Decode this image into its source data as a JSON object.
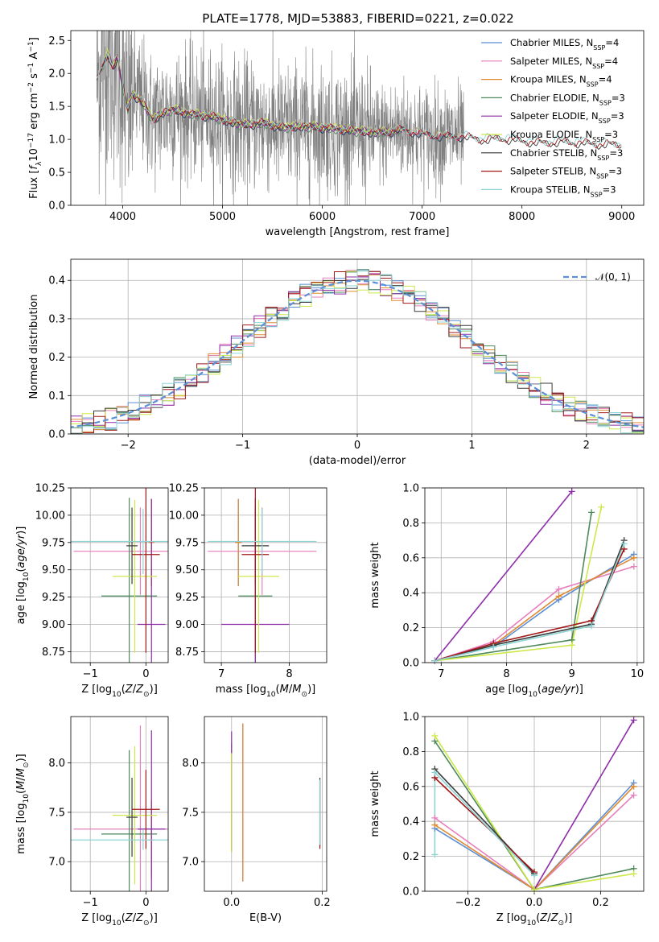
{
  "figure_title": "PLATE=1778, MJD=53883, FIBERID=0221, z=0.022",
  "colors": {
    "Chabrier MILES": "#5b8fd6",
    "Salpeter MILES": "#e77fbd",
    "Kroupa MILES": "#e08a30",
    "Chabrier ELODIE": "#4e8a5a",
    "Salpeter ELODIE": "#8e2da8",
    "Kroupa ELODIE": "#cde84a",
    "Chabrier STELIB": "#3a3a3a",
    "Salpeter STELIB": "#a01818",
    "Kroupa STELIB": "#8fd4d4",
    "data": "#808080",
    "grid": "#b0b0b0",
    "normal": "#5b8fd6"
  },
  "chart_data": [
    {
      "id": "spectrum",
      "type": "line",
      "title": "PLATE=1778, MJD=53883, FIBERID=0221, z=0.022",
      "xlabel": "wavelength [Angstrom, rest frame]",
      "ylabel": "Flux [f_λ 10^-17 erg cm^-2 s^-1 A^-1]",
      "xlim": [
        3480,
        9220
      ],
      "ylim": [
        0,
        2.65
      ],
      "xticks": [
        4000,
        5000,
        6000,
        7000,
        8000,
        9000
      ],
      "yticks": [
        0.0,
        0.5,
        1.0,
        1.5,
        2.0,
        2.5
      ],
      "grid": false,
      "legend_position": "top-right",
      "legend": [
        "Chabrier MILES, N_SSP=4",
        "Salpeter MILES, N_SSP=4",
        "Kroupa MILES, N_SSP=4",
        "Chabrier ELODIE, N_SSP=3",
        "Salpeter ELODIE, N_SSP=3",
        "Kroupa ELODIE, N_SSP=3",
        "Chabrier STELIB, N_SSP=3",
        "Salpeter STELIB, N_SSP=3",
        "Kroupa STELIB, N_SSP=3"
      ],
      "observed_x_range": [
        3740,
        7420
      ],
      "model_continuum": {
        "x": [
          3740,
          3800,
          3850,
          3900,
          3950,
          4000,
          4050,
          4100,
          4200,
          4300,
          4400,
          4500,
          4700,
          4900,
          5000,
          5200,
          5400,
          5600,
          5800,
          6000,
          6200,
          6400,
          6600,
          6800,
          7000,
          7200,
          7400,
          7600,
          7800,
          8000,
          8200,
          8400,
          8600,
          8800,
          9000
        ],
        "y": [
          1.9,
          2.1,
          2.3,
          2.1,
          2.25,
          1.8,
          1.45,
          1.7,
          1.55,
          1.3,
          1.4,
          1.45,
          1.38,
          1.35,
          1.3,
          1.22,
          1.25,
          1.18,
          1.2,
          1.18,
          1.15,
          1.12,
          1.1,
          1.15,
          1.08,
          1.05,
          1.05,
          1.0,
          1.02,
          0.98,
          0.95,
          0.97,
          0.95,
          0.93,
          0.93
        ]
      }
    },
    {
      "id": "residuals",
      "type": "histogram",
      "xlabel": "(data-model)/error",
      "ylabel": "Normed distribution",
      "xlim": [
        -2.5,
        2.5
      ],
      "ylim": [
        0,
        0.455
      ],
      "xticks": [
        -2,
        -1,
        0,
        1,
        2
      ],
      "yticks": [
        0.0,
        0.1,
        0.2,
        0.3,
        0.4
      ],
      "grid": true,
      "legend_position": "top-right",
      "legend": [
        "N(0,1)"
      ],
      "bin_width": 0.1
    },
    {
      "id": "age-vs-Z",
      "type": "errorbar",
      "xlabel": "Z [log10(Z/Z⊙)]",
      "ylabel": "age  [log10(age/yr)]",
      "xlim": [
        -1.35,
        0.4
      ],
      "ylim": [
        8.65,
        10.25
      ],
      "xticks": [
        -1,
        0
      ],
      "yticks": [
        8.75,
        9.0,
        9.25,
        9.5,
        9.75,
        10.0,
        10.25
      ],
      "grid": true,
      "points": [
        {
          "series": "Chabrier MILES",
          "x": 0.1,
          "xerr": 0.05,
          "y": 9.75,
          "yerr": 0.4
        },
        {
          "series": "Salpeter MILES",
          "x": -0.1,
          "xerr": 1.2,
          "y": 9.67,
          "yerr": 0.4
        },
        {
          "series": "Kroupa MILES",
          "x": 0.1,
          "xerr": 0.05,
          "y": 9.75,
          "yerr": 0.4
        },
        {
          "series": "Chabrier ELODIE",
          "x": -0.3,
          "xerr": 0.5,
          "y": 9.26,
          "yerr": 0.9
        },
        {
          "series": "Salpeter ELODIE",
          "x": 0.1,
          "xerr": 0.25,
          "y": 9.0,
          "yerr": 1.15
        },
        {
          "series": "Kroupa ELODIE",
          "x": -0.2,
          "xerr": 0.4,
          "y": 9.44,
          "yerr": 0.7
        },
        {
          "series": "Chabrier STELIB",
          "x": -0.25,
          "xerr": 0.1,
          "y": 9.72,
          "yerr": 0.35
        },
        {
          "series": "Salpeter STELIB",
          "x": 0.0,
          "xerr": 0.25,
          "y": 9.64,
          "yerr": 0.9
        },
        {
          "series": "Kroupa STELIB",
          "x": -0.05,
          "xerr": 1.3,
          "y": 9.76,
          "yerr": 0.3
        }
      ]
    },
    {
      "id": "age-vs-mass",
      "type": "errorbar",
      "xlabel": "mass [log10(M/M⊙)]",
      "ylabel": "",
      "xlim": [
        6.75,
        8.55
      ],
      "ylim": [
        8.65,
        10.25
      ],
      "xticks": [
        7,
        8
      ],
      "yticks": [
        8.75,
        9.0,
        9.25,
        9.5,
        9.75,
        10.0,
        10.25
      ],
      "grid": true,
      "points": [
        {
          "series": "Chabrier MILES",
          "x": 7.25,
          "xerr": 0.05,
          "y": 9.75,
          "yerr": 0.4
        },
        {
          "series": "Salpeter MILES",
          "x": 7.6,
          "xerr": 0.8,
          "y": 9.67,
          "yerr": 0.4
        },
        {
          "series": "Kroupa MILES",
          "x": 7.25,
          "xerr": 0.05,
          "y": 9.75,
          "yerr": 0.4
        },
        {
          "series": "Chabrier ELODIE",
          "x": 7.5,
          "xerr": 0.25,
          "y": 9.26,
          "yerr": 0.9
        },
        {
          "series": "Salpeter ELODIE",
          "x": 7.5,
          "xerr": 0.5,
          "y": 9.0,
          "yerr": 1.15
        },
        {
          "series": "Kroupa ELODIE",
          "x": 7.55,
          "xerr": 0.3,
          "y": 9.44,
          "yerr": 0.7
        },
        {
          "series": "Chabrier STELIB",
          "x": 7.5,
          "xerr": 0.2,
          "y": 9.72,
          "yerr": 0.35
        },
        {
          "series": "Salpeter STELIB",
          "x": 7.5,
          "xerr": 0.2,
          "y": 9.64,
          "yerr": 0.9
        },
        {
          "series": "Kroupa STELIB",
          "x": 7.6,
          "xerr": 0.8,
          "y": 9.76,
          "yerr": 0.3
        }
      ]
    },
    {
      "id": "weight-vs-age",
      "type": "line",
      "xlabel": "age  [log10(age/yr)]",
      "ylabel": "mass weight",
      "xlim": [
        6.75,
        10.1
      ],
      "ylim": [
        0,
        1.0
      ],
      "xticks": [
        7,
        8,
        9,
        10
      ],
      "yticks": [
        0.0,
        0.2,
        0.4,
        0.6,
        0.8,
        1.0
      ],
      "grid": true,
      "series": [
        {
          "name": "Chabrier MILES",
          "x": [
            6.9,
            7.8,
            8.8,
            9.95
          ],
          "y": [
            0.01,
            0.09,
            0.36,
            0.62
          ]
        },
        {
          "name": "Salpeter MILES",
          "x": [
            6.9,
            7.8,
            8.8,
            9.95
          ],
          "y": [
            0.01,
            0.12,
            0.42,
            0.55
          ]
        },
        {
          "name": "Kroupa MILES",
          "x": [
            6.9,
            7.8,
            8.8,
            9.95
          ],
          "y": [
            0.01,
            0.1,
            0.38,
            0.6
          ]
        },
        {
          "name": "Chabrier ELODIE",
          "x": [
            6.9,
            9.0,
            9.3
          ],
          "y": [
            0.01,
            0.13,
            0.86
          ]
        },
        {
          "name": "Salpeter ELODIE",
          "x": [
            6.9,
            9.0
          ],
          "y": [
            0.01,
            0.98
          ]
        },
        {
          "name": "Kroupa ELODIE",
          "x": [
            6.9,
            9.0,
            9.45
          ],
          "y": [
            0.01,
            0.1,
            0.89
          ]
        },
        {
          "name": "Chabrier STELIB",
          "x": [
            6.9,
            7.8,
            9.3,
            9.8
          ],
          "y": [
            0.01,
            0.1,
            0.22,
            0.7
          ]
        },
        {
          "name": "Salpeter STELIB",
          "x": [
            6.9,
            7.8,
            9.3,
            9.8
          ],
          "y": [
            0.01,
            0.11,
            0.24,
            0.65
          ]
        },
        {
          "name": "Kroupa STELIB",
          "x": [
            6.9,
            7.8,
            9.3,
            9.8
          ],
          "y": [
            0.01,
            0.09,
            0.21,
            0.68
          ]
        }
      ]
    },
    {
      "id": "mass-vs-Z",
      "type": "errorbar",
      "xlabel": "Z [log10(Z/Z⊙)]",
      "ylabel": "mass [log10(M/M⊙)]",
      "xlim": [
        -1.35,
        0.4
      ],
      "ylim": [
        6.7,
        8.47
      ],
      "xticks": [
        -1,
        0
      ],
      "yticks": [
        7.0,
        7.5,
        8.0
      ],
      "grid": true,
      "points": [
        {
          "series": "Chabrier MILES",
          "x": 0.1,
          "xerr": 0.05,
          "y": 7.22,
          "yerr": 0.35
        },
        {
          "series": "Salpeter MILES",
          "x": -0.1,
          "xerr": 1.2,
          "y": 7.33,
          "yerr": 1.05
        },
        {
          "series": "Kroupa MILES",
          "x": 0.1,
          "xerr": 0.05,
          "y": 7.22,
          "yerr": 0.4
        },
        {
          "series": "Chabrier ELODIE",
          "x": -0.3,
          "xerr": 0.5,
          "y": 7.28,
          "yerr": 0.85
        },
        {
          "series": "Salpeter ELODIE",
          "x": 0.1,
          "xerr": 0.25,
          "y": 7.33,
          "yerr": 1.0
        },
        {
          "series": "Kroupa ELODIE",
          "x": -0.2,
          "xerr": 0.4,
          "y": 7.47,
          "yerr": 0.7
        },
        {
          "series": "Chabrier STELIB",
          "x": -0.25,
          "xerr": 0.1,
          "y": 7.45,
          "yerr": 0.4
        },
        {
          "series": "Salpeter STELIB",
          "x": 0.0,
          "xerr": 0.25,
          "y": 7.53,
          "yerr": 0.4
        },
        {
          "series": "Kroupa STELIB",
          "x": -0.05,
          "xerr": 1.3,
          "y": 7.22,
          "yerr": 0.1
        }
      ]
    },
    {
      "id": "mass-vs-ebv",
      "type": "errorbar",
      "xlabel": "E(B-V)",
      "ylabel": "",
      "xlim": [
        -0.06,
        0.21
      ],
      "ylim": [
        6.7,
        8.47
      ],
      "xticks": [
        0.0,
        0.2
      ],
      "yticks": [
        7.0,
        7.5,
        8.0
      ],
      "grid": true,
      "points": [
        {
          "series": "Chabrier MILES",
          "x": 0.025,
          "xerr": 0,
          "y": 7.6,
          "yerr": 0.8
        },
        {
          "series": "Salpeter MILES",
          "x": 0.025,
          "xerr": 0,
          "y": 7.6,
          "yerr": 0.8
        },
        {
          "series": "Kroupa MILES",
          "x": 0.025,
          "xerr": 0,
          "y": 7.6,
          "yerr": 0.8
        },
        {
          "series": "Chabrier ELODIE",
          "x": 0.0,
          "xerr": 0,
          "y": 7.65,
          "yerr": 0.55
        },
        {
          "series": "Salpeter ELODIE",
          "x": 0.0,
          "xerr": 0,
          "y": 7.72,
          "yerr": 0.6
        },
        {
          "series": "Kroupa ELODIE",
          "x": 0.0,
          "xerr": 0,
          "y": 7.6,
          "yerr": 0.5
        },
        {
          "series": "Chabrier STELIB",
          "x": 0.195,
          "xerr": 0,
          "y": 7.5,
          "yerr": 0.35
        },
        {
          "series": "Salpeter STELIB",
          "x": 0.195,
          "xerr": 0,
          "y": 7.48,
          "yerr": 0.35
        },
        {
          "series": "Kroupa STELIB",
          "x": 0.195,
          "xerr": 0,
          "y": 7.5,
          "yerr": 0.33
        }
      ]
    },
    {
      "id": "weight-vs-Z",
      "type": "line",
      "xlabel": "Z [log10(Z/Z⊙)]",
      "ylabel": "mass weight",
      "xlim": [
        -0.33,
        0.33
      ],
      "ylim": [
        0,
        1.0
      ],
      "xticks": [
        -0.2,
        0.0,
        0.2
      ],
      "yticks": [
        0.0,
        0.2,
        0.4,
        0.6,
        0.8,
        1.0
      ],
      "grid": true,
      "series": [
        {
          "name": "Chabrier MILES",
          "x": [
            -0.3,
            0.0,
            0.3
          ],
          "y": [
            0.36,
            0.01,
            0.62
          ]
        },
        {
          "name": "Salpeter MILES",
          "x": [
            -0.3,
            0.0,
            0.3
          ],
          "y": [
            0.42,
            0.01,
            0.55
          ]
        },
        {
          "name": "Kroupa MILES",
          "x": [
            -0.3,
            0.0,
            0.3
          ],
          "y": [
            0.38,
            0.01,
            0.6
          ]
        },
        {
          "name": "Chabrier ELODIE",
          "x": [
            -0.3,
            0.0,
            0.3
          ],
          "y": [
            0.86,
            0.01,
            0.13
          ]
        },
        {
          "name": "Salpeter ELODIE",
          "x": [
            0.0,
            0.3
          ],
          "y": [
            0.01,
            0.98
          ]
        },
        {
          "name": "Kroupa ELODIE",
          "x": [
            -0.3,
            0.0,
            0.3
          ],
          "y": [
            0.89,
            0.01,
            0.1
          ]
        },
        {
          "name": "Chabrier STELIB",
          "x": [
            -0.3,
            0.0
          ],
          "y": [
            0.7,
            0.1
          ]
        },
        {
          "name": "Salpeter STELIB",
          "x": [
            -0.3,
            0.0
          ],
          "y": [
            0.65,
            0.11
          ]
        },
        {
          "name": "Kroupa STELIB",
          "x": [
            -0.3,
            -0.3,
            0.0
          ],
          "y": [
            0.21,
            0.68,
            0.09
          ]
        }
      ]
    }
  ]
}
